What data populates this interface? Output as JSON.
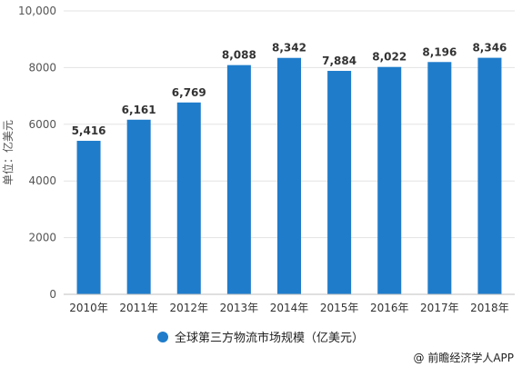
{
  "chart_data": {
    "type": "bar",
    "categories": [
      "2010年",
      "2011年",
      "2012年",
      "2013年",
      "2014年",
      "2015年",
      "2016年",
      "2017年",
      "2018年"
    ],
    "series": [
      {
        "name": "全球第三方物流市场规模（亿美元）",
        "values": [
          5416,
          6161,
          6769,
          8088,
          8342,
          7884,
          8022,
          8196,
          8346
        ],
        "labels": [
          "5,416",
          "6,161",
          "6,769",
          "8,088",
          "8,342",
          "7,884",
          "8,022",
          "8,196",
          "8,346"
        ],
        "color": "#1f7ccb"
      }
    ],
    "ylabel": "单位：亿美元",
    "ylim": [
      0,
      10000
    ],
    "yticks": [
      0,
      2000,
      4000,
      6000,
      8000,
      10000
    ],
    "ytick_labels": [
      "0",
      "2000",
      "4000",
      "6000",
      "8000",
      "10,000"
    ],
    "grid": true,
    "legend": "bottom"
  },
  "credit": "@ 前瞻经济学人APP",
  "colors": {
    "bar": "#1f7ccb",
    "grid": "#e3e3e3",
    "axis": "#bfbfbf"
  }
}
